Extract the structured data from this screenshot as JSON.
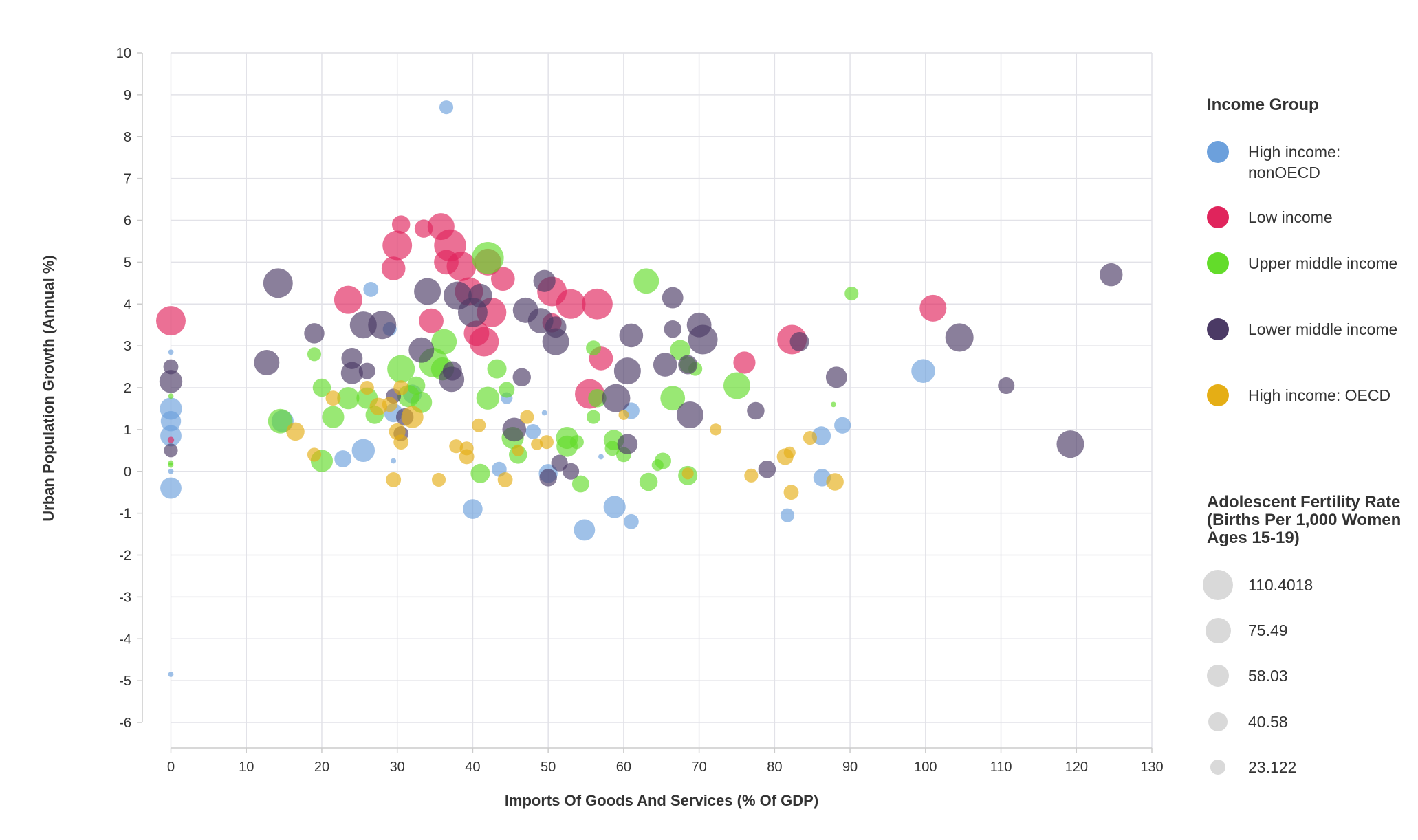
{
  "chart_data": {
    "type": "scatter",
    "xlabel": "Imports Of Goods And Services (% Of GDP)",
    "ylabel": "Urban Population Growth (Annual %)",
    "xlim": [
      0,
      130
    ],
    "ylim": [
      -6,
      10
    ],
    "xticks": [
      "0",
      "10",
      "20",
      "30",
      "40",
      "50",
      "60",
      "70",
      "80",
      "90",
      "100",
      "110",
      "120",
      "130"
    ],
    "yticks": [
      "10",
      "9",
      "8",
      "7",
      "6",
      "5",
      "4",
      "3",
      "2",
      "1",
      "0",
      "-1",
      "-2",
      "-3",
      "-4",
      "-5",
      "-6"
    ],
    "grid": true,
    "legend_placement": "right",
    "color_legend_title": "Income Group",
    "size_legend_title": "Adolescent Fertility Rate (Births Per 1,000 Women Ages 15-19)",
    "size_legend_values": [
      "110.4018",
      "75.49",
      "58.03",
      "40.58",
      "23.122"
    ],
    "point_format": [
      "imports_pct_gdp",
      "urban_pop_growth",
      "adolescent_fertility"
    ],
    "series": [
      {
        "name": "High income: nonOECD",
        "color": "#6ca0dc",
        "points": [
          [
            36.5,
            8.7,
            18
          ],
          [
            26.5,
            4.35,
            22
          ],
          [
            29,
            3.4,
            18
          ],
          [
            0,
            2.85,
            1
          ],
          [
            0,
            1.5,
            55
          ],
          [
            0,
            1.2,
            45
          ],
          [
            0,
            0.85,
            50
          ],
          [
            0,
            0,
            1
          ],
          [
            0,
            -0.4,
            50
          ],
          [
            0,
            -4.85,
            1
          ],
          [
            14.8,
            1.2,
            55
          ],
          [
            22.8,
            0.3,
            30
          ],
          [
            25.5,
            0.5,
            60
          ],
          [
            29.5,
            1.4,
            38
          ],
          [
            44.5,
            1.75,
            12
          ],
          [
            43.5,
            0.05,
            22
          ],
          [
            49.5,
            1.4,
            1
          ],
          [
            48,
            0.95,
            22
          ],
          [
            50,
            -0.05,
            38
          ],
          [
            40,
            -0.9,
            42
          ],
          [
            54.8,
            -1.4,
            50
          ],
          [
            58.8,
            -0.85,
            55
          ],
          [
            61,
            -1.2,
            22
          ],
          [
            61,
            1.45,
            28
          ],
          [
            57,
            0.35,
            1
          ],
          [
            86.2,
            0.85,
            38
          ],
          [
            89,
            1.1,
            28
          ],
          [
            86.3,
            -0.15,
            32
          ],
          [
            81.7,
            -1.05,
            18
          ],
          [
            99.7,
            2.4,
            65
          ],
          [
            29.5,
            0.25,
            1
          ],
          [
            32,
            1.85,
            38
          ]
        ]
      },
      {
        "name": "Low income",
        "color": "#e0245c",
        "points": [
          [
            0,
            3.6,
            105
          ],
          [
            23.5,
            4.1,
            95
          ],
          [
            30,
            5.4,
            105
          ],
          [
            29.5,
            4.85,
            65
          ],
          [
            30.5,
            5.9,
            35
          ],
          [
            33.5,
            5.8,
            35
          ],
          [
            35.8,
            5.85,
            85
          ],
          [
            37,
            5.4,
            125
          ],
          [
            36.5,
            5.0,
            70
          ],
          [
            38.5,
            4.9,
            105
          ],
          [
            39.5,
            4.3,
            95
          ],
          [
            42,
            5.0,
            85
          ],
          [
            44,
            4.6,
            65
          ],
          [
            42.5,
            3.8,
            105
          ],
          [
            40.5,
            3.3,
            75
          ],
          [
            41.5,
            3.1,
            105
          ],
          [
            34.5,
            3.6,
            70
          ],
          [
            50.5,
            4.3,
            105
          ],
          [
            53,
            4.0,
            105
          ],
          [
            56.5,
            4.0,
            115
          ],
          [
            50.5,
            3.55,
            40
          ],
          [
            57,
            2.7,
            65
          ],
          [
            55.5,
            1.85,
            105
          ],
          [
            76,
            2.6,
            55
          ],
          [
            82.3,
            3.15,
            105
          ],
          [
            101,
            3.9,
            85
          ],
          [
            0,
            0.75,
            2
          ]
        ]
      },
      {
        "name": "Upper middle income",
        "color": "#63dc2a",
        "points": [
          [
            0,
            1.8,
            1
          ],
          [
            0,
            0.2,
            1
          ],
          [
            0,
            0.15,
            1
          ],
          [
            19,
            2.8,
            18
          ],
          [
            20,
            2.0,
            35
          ],
          [
            20,
            0.25,
            55
          ],
          [
            14.5,
            1.2,
            70
          ],
          [
            21.5,
            1.3,
            55
          ],
          [
            23.5,
            1.75,
            55
          ],
          [
            26,
            1.75,
            50
          ],
          [
            27,
            1.35,
            35
          ],
          [
            30.5,
            2.45,
            90
          ],
          [
            31.5,
            1.8,
            55
          ],
          [
            33.2,
            1.65,
            50
          ],
          [
            32.5,
            2.05,
            35
          ],
          [
            34.8,
            2.6,
            105
          ],
          [
            36.2,
            3.1,
            75
          ],
          [
            36,
            2.45,
            60
          ],
          [
            42,
            5.1,
            125
          ],
          [
            43.2,
            2.45,
            40
          ],
          [
            44.5,
            1.95,
            25
          ],
          [
            42,
            1.75,
            60
          ],
          [
            41,
            -0.05,
            40
          ],
          [
            45.3,
            0.8,
            55
          ],
          [
            46,
            0.4,
            35
          ],
          [
            52.5,
            0.8,
            55
          ],
          [
            52.5,
            0.6,
            50
          ],
          [
            53.8,
            0.7,
            18
          ],
          [
            54.3,
            -0.3,
            30
          ],
          [
            56,
            2.95,
            22
          ],
          [
            56,
            1.3,
            18
          ],
          [
            56.5,
            1.75,
            35
          ],
          [
            58.5,
            0.55,
            22
          ],
          [
            58.7,
            0.75,
            45
          ],
          [
            60,
            0.4,
            22
          ],
          [
            63,
            4.55,
            75
          ],
          [
            63.3,
            -0.25,
            35
          ],
          [
            64.5,
            0.15,
            12
          ],
          [
            65.2,
            0.25,
            28
          ],
          [
            66.5,
            1.75,
            70
          ],
          [
            67.5,
            2.9,
            45
          ],
          [
            68.5,
            2.55,
            28
          ],
          [
            69.5,
            2.45,
            18
          ],
          [
            68.5,
            -0.1,
            40
          ],
          [
            75,
            2.05,
            85
          ],
          [
            87.8,
            1.6,
            1
          ],
          [
            90.2,
            4.25,
            18
          ]
        ]
      },
      {
        "name": "Lower middle income",
        "color": "#4b3a65",
        "points": [
          [
            0,
            2.5,
            22
          ],
          [
            0,
            2.15,
            60
          ],
          [
            0,
            0.5,
            18
          ],
          [
            14.2,
            4.5,
            105
          ],
          [
            12.7,
            2.6,
            75
          ],
          [
            19,
            3.3,
            45
          ],
          [
            25.5,
            3.5,
            85
          ],
          [
            28,
            3.5,
            95
          ],
          [
            24,
            2.7,
            50
          ],
          [
            24,
            2.35,
            55
          ],
          [
            26,
            2.4,
            28
          ],
          [
            29.5,
            1.8,
            22
          ],
          [
            30.5,
            0.9,
            22
          ],
          [
            31,
            1.3,
            32
          ],
          [
            34,
            4.3,
            85
          ],
          [
            33.2,
            2.9,
            75
          ],
          [
            37.3,
            2.4,
            40
          ],
          [
            37.2,
            2.2,
            75
          ],
          [
            38,
            4.2,
            95
          ],
          [
            40,
            3.8,
            105
          ],
          [
            41,
            4.2,
            65
          ],
          [
            47,
            3.85,
            75
          ],
          [
            46.5,
            2.25,
            35
          ],
          [
            49,
            3.6,
            75
          ],
          [
            49.5,
            4.55,
            55
          ],
          [
            51,
            3.1,
            85
          ],
          [
            51,
            3.45,
            50
          ],
          [
            45.5,
            1.0,
            65
          ],
          [
            51.5,
            0.2,
            28
          ],
          [
            50,
            -0.15,
            32
          ],
          [
            53,
            0,
            28
          ],
          [
            59,
            1.75,
            95
          ],
          [
            60.5,
            2.4,
            85
          ],
          [
            61,
            3.25,
            65
          ],
          [
            60.5,
            0.65,
            45
          ],
          [
            66.5,
            4.15,
            50
          ],
          [
            66.5,
            3.4,
            32
          ],
          [
            65.5,
            2.55,
            65
          ],
          [
            68.5,
            2.55,
            40
          ],
          [
            70,
            3.5,
            70
          ],
          [
            70.5,
            3.15,
            105
          ],
          [
            68.8,
            1.35,
            85
          ],
          [
            77.5,
            1.45,
            32
          ],
          [
            79,
            0.05,
            32
          ],
          [
            83.3,
            3.1,
            40
          ],
          [
            88.2,
            2.25,
            50
          ],
          [
            104.5,
            3.2,
            95
          ],
          [
            110.7,
            2.05,
            28
          ],
          [
            119.2,
            0.65,
            90
          ],
          [
            124.6,
            4.7,
            60
          ]
        ]
      },
      {
        "name": "High income: OECD",
        "color": "#e5ae15",
        "points": [
          [
            16.5,
            0.95,
            35
          ],
          [
            19,
            0.4,
            18
          ],
          [
            21.5,
            1.75,
            22
          ],
          [
            26,
            2.0,
            18
          ],
          [
            27.5,
            1.55,
            32
          ],
          [
            29,
            1.6,
            22
          ],
          [
            30,
            0.95,
            28
          ],
          [
            30.5,
            0.7,
            22
          ],
          [
            30.5,
            2.0,
            22
          ],
          [
            32,
            1.3,
            55
          ],
          [
            29.5,
            -0.2,
            22
          ],
          [
            35.5,
            -0.2,
            18
          ],
          [
            37.8,
            0.6,
            18
          ],
          [
            39.2,
            0.35,
            22
          ],
          [
            39.2,
            0.55,
            18
          ],
          [
            40.8,
            1.1,
            18
          ],
          [
            44.3,
            -0.2,
            22
          ],
          [
            46,
            0.5,
            12
          ],
          [
            47.2,
            1.3,
            18
          ],
          [
            48.5,
            0.65,
            12
          ],
          [
            49.8,
            0.7,
            18
          ],
          [
            60,
            1.35,
            8
          ],
          [
            68.5,
            -0.05,
            12
          ],
          [
            72.2,
            1.0,
            12
          ],
          [
            76.9,
            -0.1,
            18
          ],
          [
            81.4,
            0.35,
            28
          ],
          [
            82,
            0.45,
            12
          ],
          [
            82.2,
            -0.5,
            22
          ],
          [
            84.7,
            0.8,
            18
          ],
          [
            88,
            -0.25,
            32
          ]
        ]
      }
    ]
  }
}
